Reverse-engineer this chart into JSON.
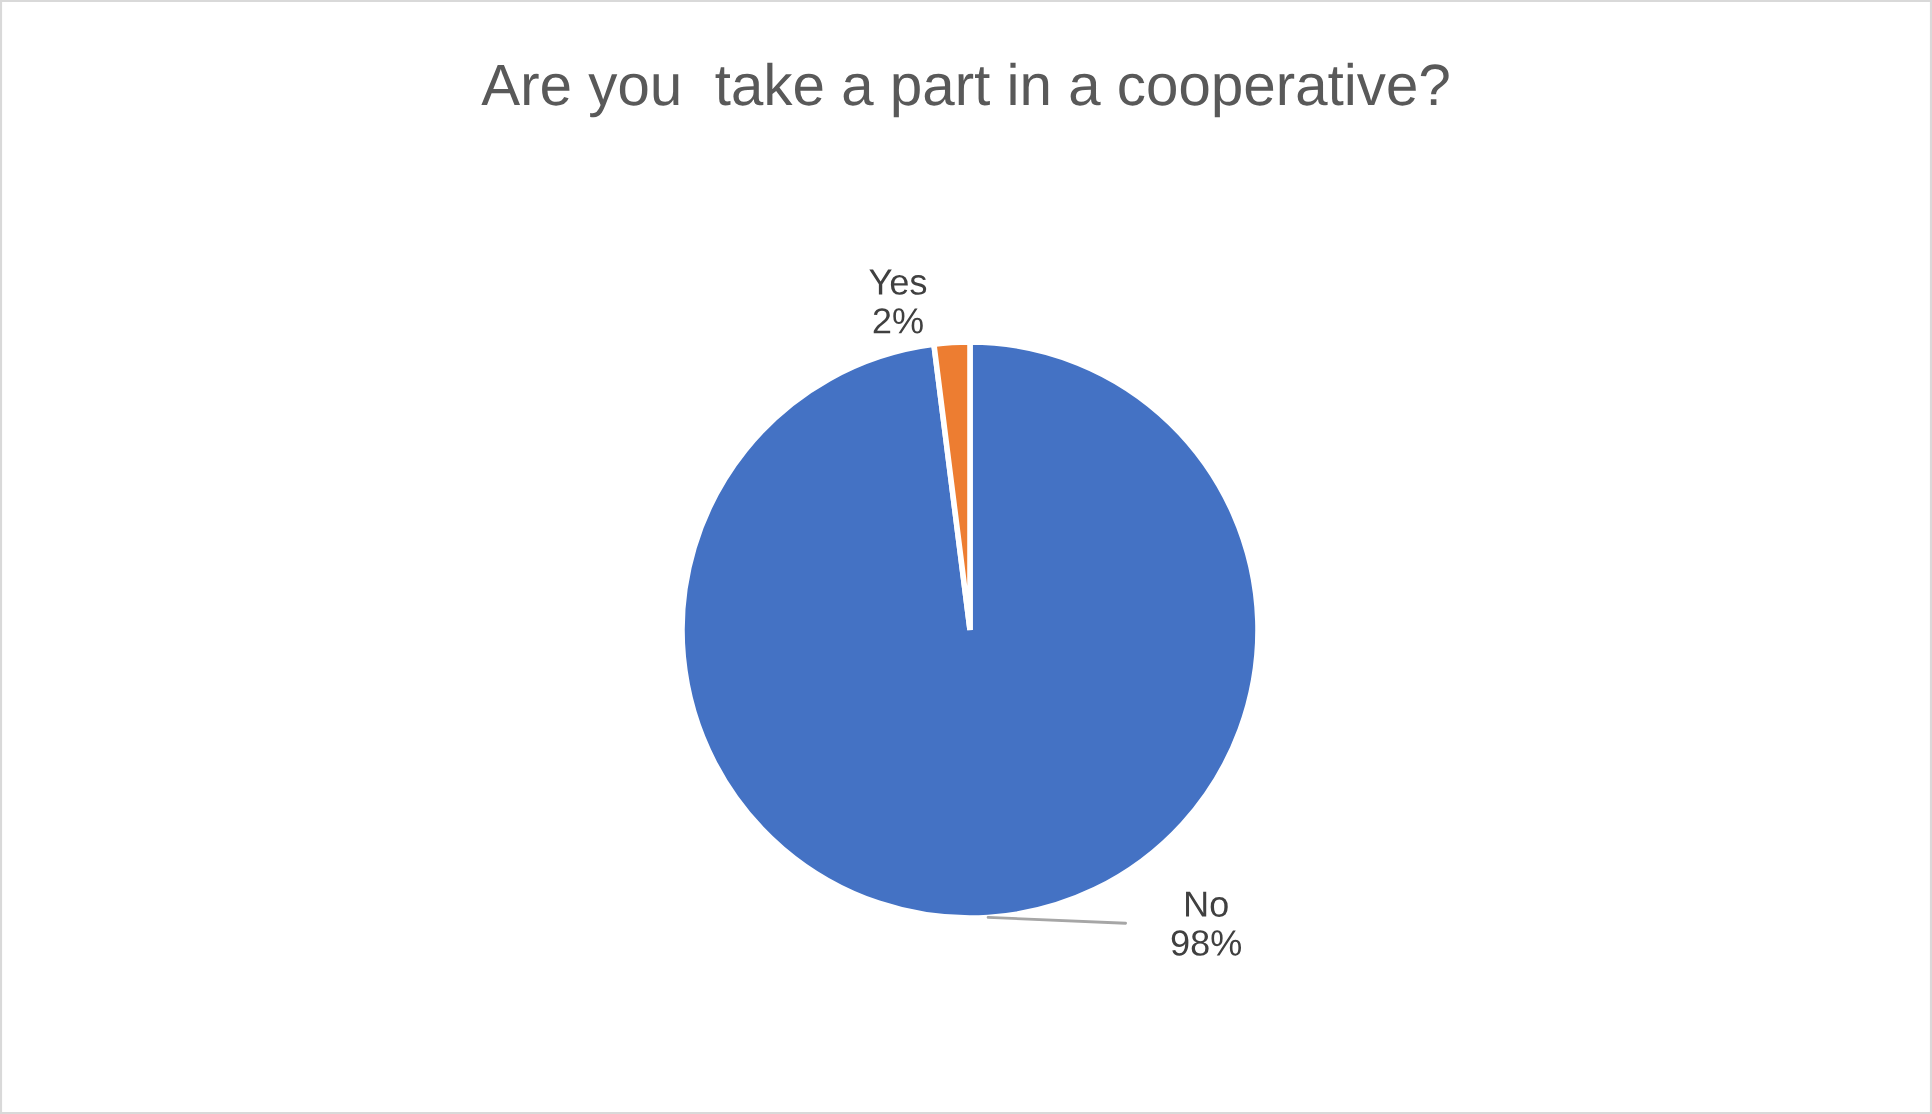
{
  "chart_data": {
    "type": "pie",
    "title": "Are you  take a part in a cooperative?",
    "categories": [
      "No",
      "Yes"
    ],
    "values": [
      98,
      2
    ],
    "colors": [
      "#4472c4",
      "#ed7d31"
    ],
    "value_labels": [
      "98%",
      "2%"
    ]
  }
}
